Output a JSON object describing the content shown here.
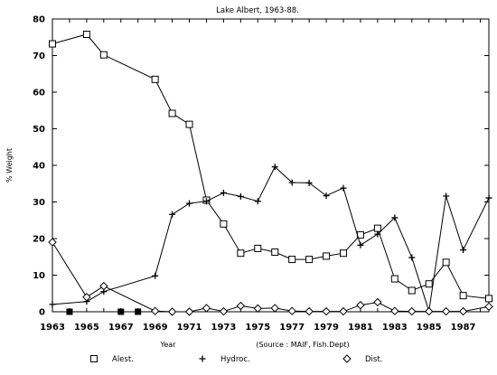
{
  "chart_data": {
    "type": "line",
    "title": "Lake Albert, 1963-88.",
    "xlabel": "Year",
    "ylabel": "% Weight",
    "source_note": "(Source : MAIF, Fish.Dept)",
    "xlim": [
      1963,
      1988.5
    ],
    "ylim": [
      0,
      80
    ],
    "x_ticks": [
      1963,
      1965,
      1967,
      1969,
      1971,
      1973,
      1975,
      1977,
      1979,
      1981,
      1983,
      1985,
      1987
    ],
    "y_ticks": [
      0,
      10,
      20,
      30,
      40,
      50,
      60,
      70,
      80
    ],
    "grid": false,
    "legend_position": "bottom",
    "series": [
      {
        "name": "Alest.",
        "marker": "square",
        "x": [
          1963,
          1965,
          1966,
          1969,
          1970,
          1971,
          1972,
          1973,
          1974,
          1975,
          1976,
          1977,
          1978,
          1979,
          1980,
          1981,
          1982,
          1983,
          1984,
          1985,
          1986,
          1987,
          1988.5
        ],
        "y": [
          73.2,
          75.8,
          70.2,
          63.5,
          54.2,
          51.2,
          30.5,
          24.0,
          16.0,
          17.3,
          16.3,
          14.3,
          14.3,
          15.2,
          16.0,
          21.0,
          22.8,
          9.0,
          5.8,
          7.6,
          13.5,
          4.4,
          3.6
        ]
      },
      {
        "name": "Hydroc.",
        "marker": "plus",
        "x": [
          1963,
          1965,
          1966,
          1969,
          1970,
          1971,
          1972,
          1973,
          1974,
          1975,
          1976,
          1977,
          1978,
          1979,
          1980,
          1981,
          1982,
          1983,
          1984,
          1985,
          1986,
          1987,
          1988.5
        ],
        "y": [
          2.0,
          2.8,
          5.5,
          9.8,
          26.6,
          29.6,
          30.2,
          32.5,
          31.5,
          30.2,
          39.6,
          35.3,
          35.2,
          31.7,
          33.8,
          18.2,
          21.2,
          25.7,
          14.8,
          0.2,
          31.6,
          16.9,
          31.1
        ]
      },
      {
        "name": "Dist.",
        "marker": "diamond",
        "x": [
          1963,
          1965,
          1966,
          1969,
          1970,
          1971,
          1972,
          1973,
          1974,
          1975,
          1976,
          1977,
          1978,
          1979,
          1980,
          1981,
          1982,
          1983,
          1984,
          1985,
          1986,
          1987,
          1988.5
        ],
        "y": [
          19.0,
          4.0,
          7.0,
          0.2,
          0.0,
          0.0,
          1.0,
          0.1,
          1.6,
          0.9,
          1.0,
          0.2,
          0.1,
          0.1,
          0.1,
          1.8,
          2.6,
          0.2,
          0.1,
          0.1,
          0.1,
          0.1,
          1.4
        ]
      }
    ],
    "missing_years": [
      1964,
      1967,
      1968
    ]
  }
}
